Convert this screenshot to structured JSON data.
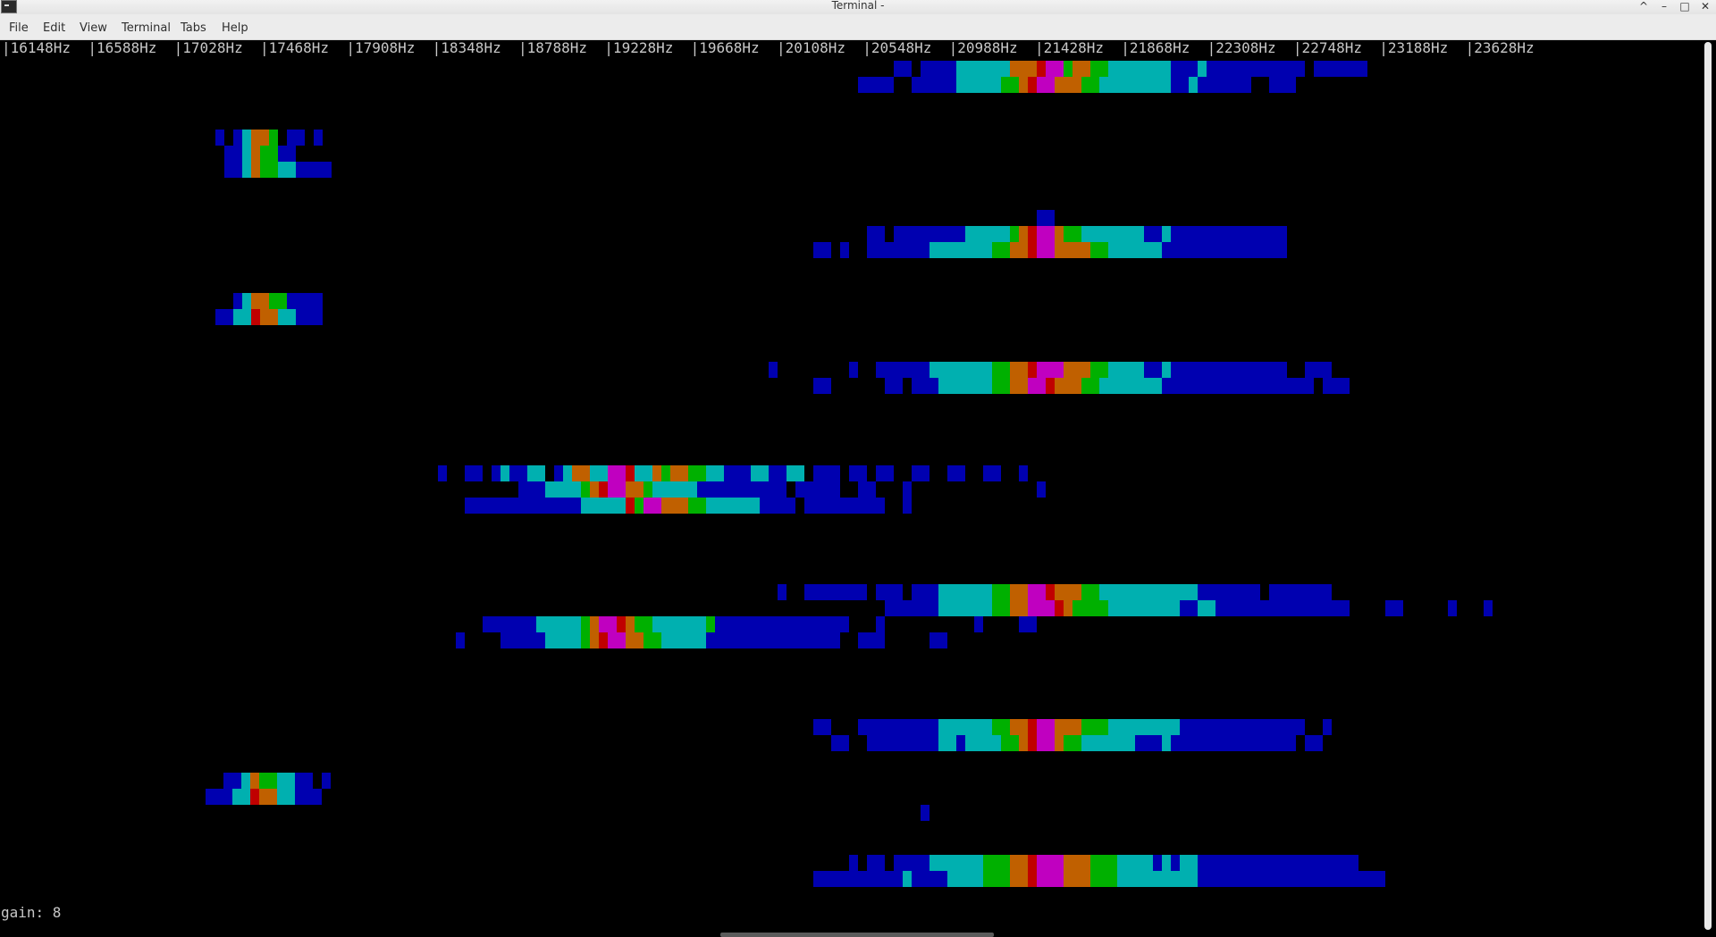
{
  "window": {
    "title": "Terminal -",
    "controls": {
      "minimize": "^",
      "restore": "–",
      "maximize": "□",
      "close": "✕"
    }
  },
  "menu": [
    "File",
    "Edit",
    "View",
    "Terminal",
    "Tabs",
    "Help"
  ],
  "terminal": {
    "frequency_header": "|16148Hz  |16588Hz  |17028Hz  |17468Hz  |17908Hz  |18348Hz  |18788Hz  |19228Hz  |19668Hz  |20108Hz  |20548Hz  |20988Hz  |21428Hz  |21868Hz  |22308Hz  |22748Hz  |23188Hz  |23628Hz",
    "frequency_labels": [
      "16148Hz",
      "16588Hz",
      "17028Hz",
      "17468Hz",
      "17908Hz",
      "18348Hz",
      "18788Hz",
      "19228Hz",
      "19668Hz",
      "20108Hz",
      "20548Hz",
      "20988Hz",
      "21428Hz",
      "21868Hz",
      "22308Hz",
      "22748Hz",
      "23188Hz",
      "23628Hz"
    ],
    "gain_label": "gain: 8"
  },
  "colors": {
    "background": "#000000",
    "text": "#c8c8c8",
    "palette": [
      "#0000b0",
      "#00b0b0",
      "#00b000",
      "#c06000",
      "#c000c0",
      "#c00000"
    ]
  }
}
